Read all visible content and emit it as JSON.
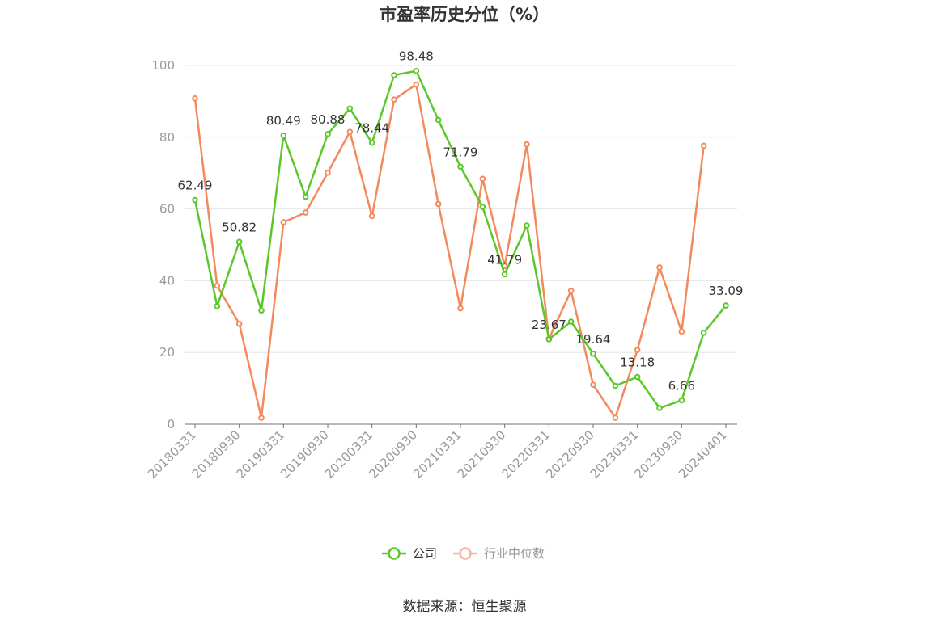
{
  "title": "市盈率历史分位（%）",
  "source": "数据来源：恒生聚源",
  "chart_data": {
    "type": "line",
    "title": "市盈率历史分位（%）",
    "ylim": [
      0,
      100
    ],
    "yticks": [
      0,
      20,
      40,
      60,
      80,
      100
    ],
    "grid": true,
    "legend_position": "bottom-center",
    "x": [
      "20180331",
      "20180630",
      "20180930",
      "20181231",
      "20190331",
      "20190630",
      "20190930",
      "20191231",
      "20200331",
      "20200630",
      "20200930",
      "20201231",
      "20210331",
      "20210630",
      "20210930",
      "20211231",
      "20220331",
      "20220630",
      "20220930",
      "20221231",
      "20230331",
      "20230630",
      "20230930",
      "20231231",
      "20240401"
    ],
    "xtick_labels": [
      "20180331",
      "20180930",
      "20190331",
      "20190930",
      "20200331",
      "20200930",
      "20210331",
      "20210930",
      "20220331",
      "20220930",
      "20230331",
      "20230930",
      "20240401"
    ],
    "series": [
      {
        "name": "公司",
        "color": "#5cc72a",
        "values": [
          62.49,
          32.9,
          50.82,
          31.7,
          80.49,
          63.4,
          80.88,
          88.0,
          78.44,
          97.3,
          98.48,
          84.8,
          71.79,
          60.6,
          41.79,
          55.4,
          23.67,
          28.6,
          19.64,
          10.7,
          13.18,
          4.5,
          6.66,
          25.5,
          33.09
        ],
        "labels": [
          "62.49",
          null,
          "50.82",
          null,
          "80.49",
          null,
          "80.88",
          null,
          "78.44",
          null,
          "98.48",
          null,
          "71.79",
          null,
          "41.79",
          null,
          "23.67",
          null,
          "19.64",
          null,
          "13.18",
          null,
          "6.66",
          null,
          "33.09"
        ]
      },
      {
        "name": "行业中位数",
        "color": "#f28a5c",
        "values": [
          90.8,
          38.6,
          28.0,
          1.8,
          56.3,
          59.0,
          70.1,
          81.5,
          58.0,
          90.5,
          94.7,
          61.4,
          32.3,
          68.4,
          44.1,
          78.0,
          23.8,
          37.2,
          11.0,
          1.8,
          20.7,
          43.7,
          25.8,
          77.6,
          null
        ]
      }
    ]
  }
}
